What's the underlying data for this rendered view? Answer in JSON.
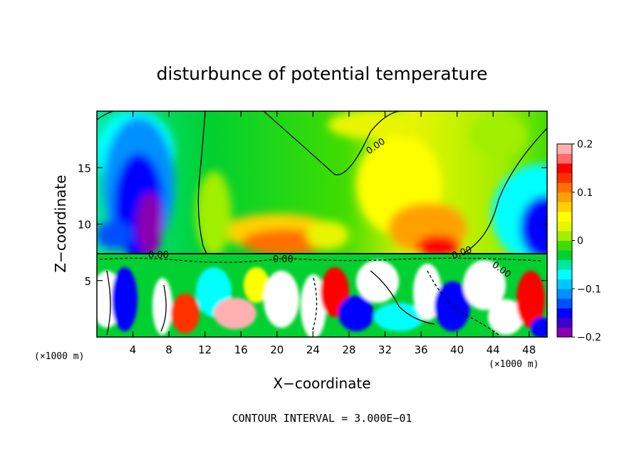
{
  "chart_data": {
    "type": "heatmap",
    "title": "disturbunce of potential temperature",
    "xlabel": "X−coordinate",
    "ylabel": "Z−coordinate",
    "x_unit_label": "(×1000 m)",
    "z_unit_label": "(×1000 m)",
    "xlim": [
      0,
      50
    ],
    "ylim": [
      0,
      20
    ],
    "x_ticks": [
      4,
      8,
      12,
      16,
      20,
      24,
      28,
      32,
      36,
      40,
      44,
      48
    ],
    "y_ticks": [
      5,
      10,
      15
    ],
    "colorbar": {
      "min": -0.2,
      "max": 0.2,
      "labels": [
        "0.2",
        "0.1",
        "0",
        "−0.1",
        "−0.2"
      ],
      "colors": [
        "#8a00b0",
        "#3d00c8",
        "#0000ff",
        "#0050ff",
        "#0090ff",
        "#00c8ff",
        "#00ffff",
        "#00e8a0",
        "#00d030",
        "#40dd00",
        "#a0ee00",
        "#e8f500",
        "#ffff00",
        "#ffd000",
        "#ffa000",
        "#ff7000",
        "#ff3000",
        "#ff0000",
        "#ff6a6a",
        "#ffb0b0"
      ]
    },
    "contour_label": "0.00",
    "contour_interval_text": "CONTOUR INTERVAL = 3.000E−01",
    "grid": false,
    "legend": "colorbar-right"
  }
}
